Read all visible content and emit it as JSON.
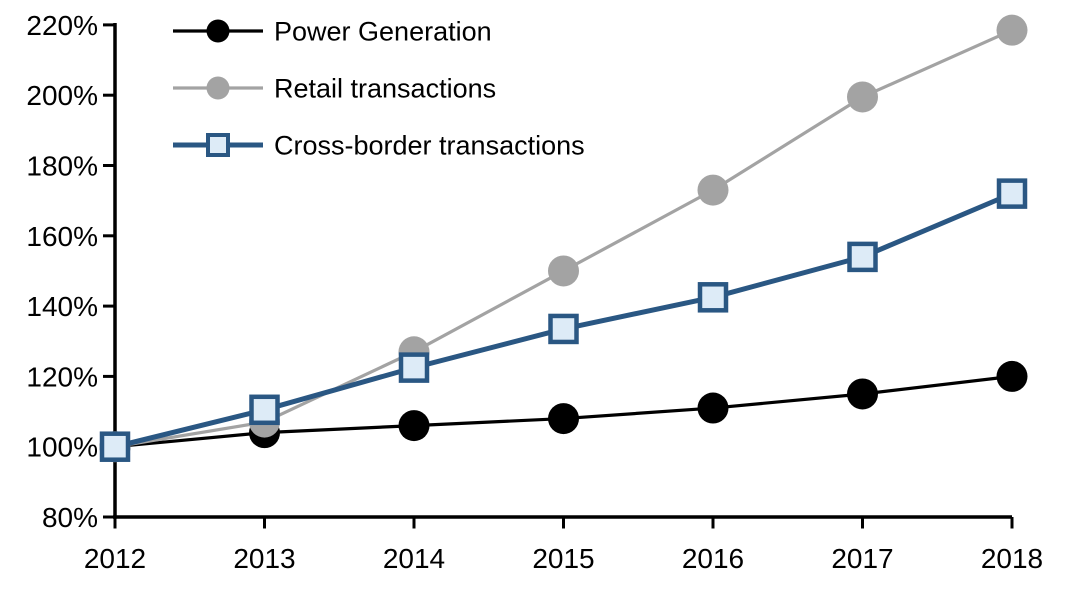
{
  "chart_data": {
    "type": "line",
    "title": "",
    "xlabel": "",
    "ylabel": "",
    "x": [
      2012,
      2013,
      2014,
      2015,
      2016,
      2017,
      2018
    ],
    "xtick_labels": [
      "2012",
      "2013",
      "2014",
      "2015",
      "2016",
      "2017",
      "2018"
    ],
    "ylim": [
      80,
      220
    ],
    "ytick_step": 20,
    "ytick_labels": [
      "80%",
      "100%",
      "120%",
      "140%",
      "160%",
      "180%",
      "200%",
      "220%"
    ],
    "grid": false,
    "legend_position": "top-left",
    "series": [
      {
        "name": "Power Generation",
        "color": "#000000",
        "marker": "circle",
        "marker_fill": "#000000",
        "line_width": 3.2,
        "values": [
          100,
          104,
          106,
          108,
          111,
          115,
          120
        ]
      },
      {
        "name": "Retail transactions",
        "color": "#A3A3A3",
        "marker": "circle",
        "marker_fill": "#A3A3A3",
        "line_width": 3.2,
        "values": [
          100,
          107,
          127,
          150,
          173,
          199.5,
          218.5
        ]
      },
      {
        "name": "Cross-border transactions",
        "color": "#2A5783",
        "marker": "square",
        "marker_fill": "#DDEBF7",
        "line_width": 5,
        "values": [
          100,
          110.5,
          122.5,
          133.5,
          142.5,
          154,
          172
        ]
      }
    ],
    "axis_color": "#000000",
    "background_color": "#FFFFFF"
  }
}
